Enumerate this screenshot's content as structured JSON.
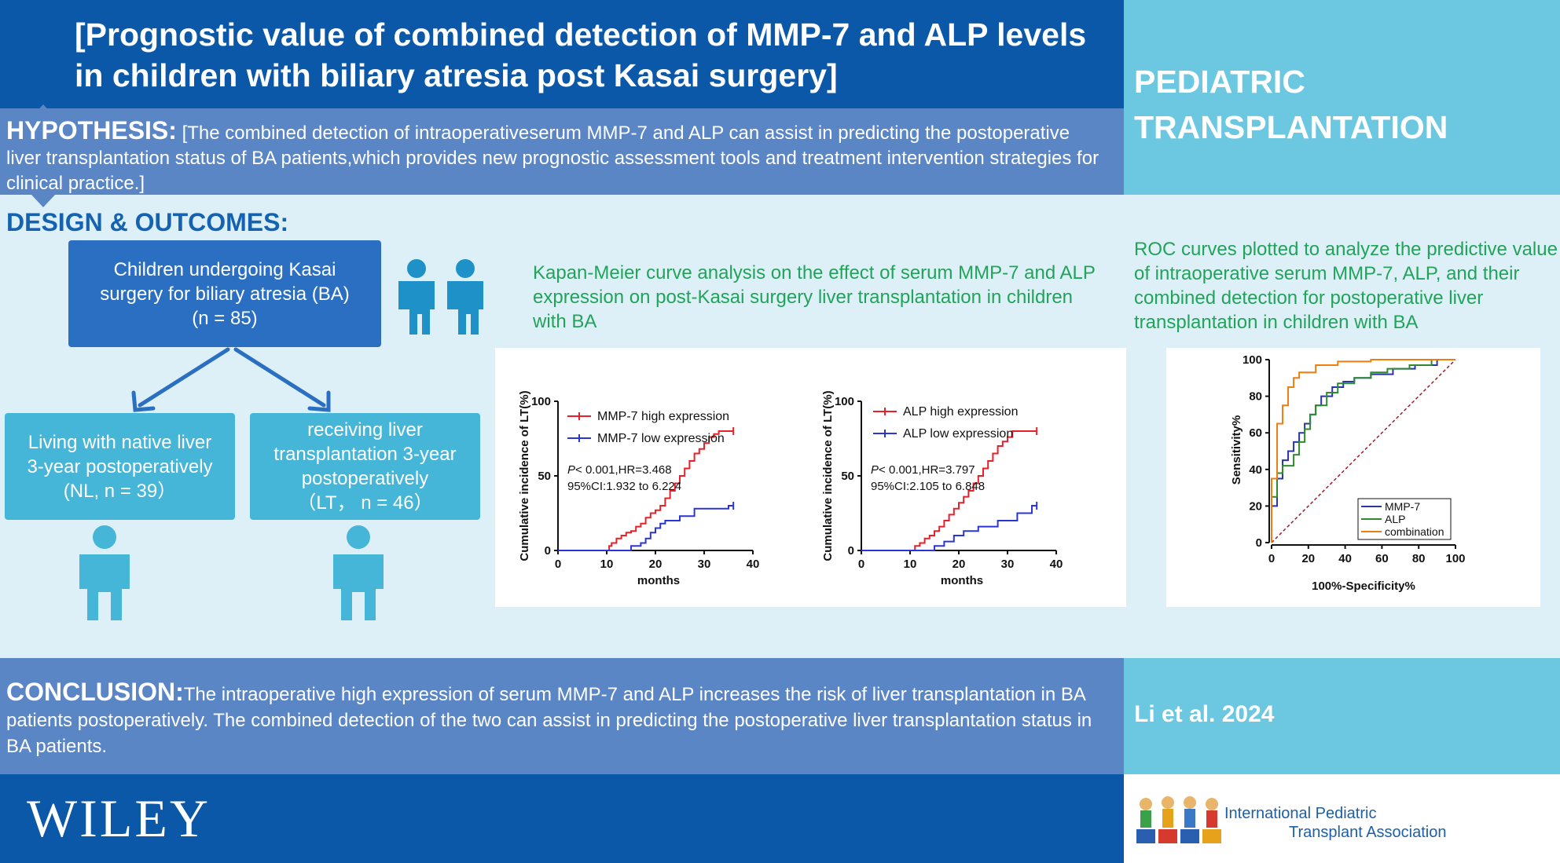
{
  "title": "[Prognostic value of combined detection of MMP-7 and ALP levels in children with biliary atresia post Kasai surgery]",
  "journal": "PEDIATRIC TRANSPLANTATION",
  "hypothesis": {
    "label": "HYPOTHESIS:",
    "text": " [The combined detection of intraoperativeserum MMP-7 and ALP can assist in predicting the postoperative liver transplantation status of BA patients,which provides new prognostic assessment tools and treatment intervention strategies for clinical practice.]"
  },
  "design": {
    "label": "DESIGN & OUTCOMES:",
    "main_box": [
      "Children undergoing Kasai",
      "surgery for biliary atresia (BA)",
      "(n = 85)"
    ],
    "nl_box": [
      "Living with native liver",
      "3-year postoperatively",
      "(NL, n = 39）"
    ],
    "lt_box": [
      "receiving liver",
      "transplantation 3-year",
      "postoperatively",
      "（LT， n = 46）"
    ]
  },
  "km_caption": "Kapan-Meier curve analysis on the effect of serum MMP-7 and ALP expression on post-Kasai surgery liver transplantation in children with BA",
  "roc_caption": "ROC curves plotted to analyze the predictive value of intraoperative serum MMP-7, ALP, and their combined detection for postoperative liver transplantation in children with BA",
  "colors": {
    "high": "#e8202a",
    "low": "#2a35d8",
    "mmp7": "#2a35a8",
    "alp": "#2e8b2e",
    "combination": "#f07d10",
    "reference": "#9b1c2e"
  },
  "chart_data": [
    {
      "type": "line",
      "ylabel": "Cumulative incidence of LT(%)",
      "xlabel": "months",
      "xlim": [
        0,
        40
      ],
      "ylim": [
        0,
        100
      ],
      "xticks": [
        "0",
        "10",
        "20",
        "30",
        "40"
      ],
      "yticks": [
        "0",
        "50",
        "100"
      ],
      "stat_line1": [
        "P",
        "< 0.001,HR=3.468"
      ],
      "stat_line2": "95%CI:1.932 to 6.224",
      "series": [
        {
          "name": "MMP-7 high expression",
          "color": "#e8202a",
          "x": [
            0,
            10,
            10.5,
            11,
            12,
            13,
            14,
            15,
            16,
            17,
            18,
            19,
            20,
            21,
            22,
            23,
            24,
            25,
            26,
            27,
            28,
            29,
            30,
            31,
            32,
            33,
            36
          ],
          "y": [
            0,
            0,
            3,
            5,
            8,
            10,
            12,
            13,
            16,
            18,
            22,
            25,
            27,
            30,
            35,
            40,
            45,
            50,
            55,
            60,
            65,
            68,
            72,
            76,
            78,
            80,
            80
          ]
        },
        {
          "name": "MMP-7 low expression",
          "color": "#2a35d8",
          "x": [
            0,
            14,
            15,
            17,
            18,
            19,
            20,
            21,
            22,
            25,
            28,
            35,
            36
          ],
          "y": [
            0,
            0,
            3,
            5,
            8,
            12,
            15,
            18,
            20,
            23,
            28,
            30,
            30
          ]
        }
      ]
    },
    {
      "type": "line",
      "ylabel": "Cumulative incidence of LT(%)",
      "xlabel": "months",
      "xlim": [
        0,
        40
      ],
      "ylim": [
        0,
        100
      ],
      "xticks": [
        "0",
        "10",
        "20",
        "30",
        "40"
      ],
      "yticks": [
        "0",
        "50",
        "100"
      ],
      "stat_line1": [
        "P",
        "< 0.001,HR=3.797"
      ],
      "stat_line2": "95%CI:2.105 to 6.848",
      "series": [
        {
          "name": "ALP high expression",
          "color": "#e8202a",
          "x": [
            0,
            10,
            11,
            12,
            13,
            14,
            15,
            16,
            17,
            18,
            19,
            20,
            21,
            22,
            23,
            24,
            25,
            26,
            27,
            28,
            29,
            30,
            31,
            36
          ],
          "y": [
            0,
            0,
            3,
            5,
            8,
            10,
            13,
            16,
            20,
            24,
            28,
            32,
            36,
            40,
            45,
            50,
            55,
            60,
            65,
            70,
            73,
            76,
            80,
            80
          ]
        },
        {
          "name": "ALP low expression",
          "color": "#2a35d8",
          "x": [
            0,
            14,
            15,
            17,
            19,
            21,
            24,
            28,
            32,
            35,
            36
          ],
          "y": [
            0,
            0,
            3,
            6,
            10,
            13,
            16,
            20,
            25,
            30,
            30
          ]
        }
      ]
    },
    {
      "type": "line",
      "ylabel": "Sensitivity%",
      "xlabel": "100%-Specificity%",
      "xlim": [
        0,
        100
      ],
      "ylim": [
        0,
        100
      ],
      "xticks": [
        "0",
        "20",
        "40",
        "60",
        "80",
        "100"
      ],
      "yticks": [
        "0",
        "20",
        "40",
        "60",
        "80",
        "100"
      ],
      "series": [
        {
          "name": "MMP-7",
          "color": "#2a35a8",
          "x": [
            0,
            0,
            3,
            3,
            6,
            6,
            9,
            9,
            12,
            12,
            15,
            15,
            18,
            18,
            21,
            21,
            24,
            24,
            27,
            27,
            33,
            33,
            39,
            39,
            45,
            45,
            54,
            54,
            66,
            66,
            78,
            78,
            90,
            90,
            100
          ],
          "y": [
            0,
            20,
            20,
            35,
            35,
            45,
            45,
            50,
            50,
            55,
            55,
            60,
            60,
            65,
            65,
            70,
            70,
            75,
            75,
            80,
            80,
            85,
            85,
            88,
            88,
            90,
            90,
            92,
            92,
            95,
            95,
            97,
            97,
            100,
            100
          ]
        },
        {
          "name": "ALP",
          "color": "#2e8b2e",
          "x": [
            0,
            0,
            3,
            3,
            6,
            6,
            12,
            12,
            15,
            15,
            18,
            18,
            21,
            21,
            24,
            24,
            30,
            30,
            36,
            36,
            45,
            45,
            54,
            54,
            63,
            63,
            75,
            75,
            87,
            87,
            100
          ],
          "y": [
            0,
            25,
            25,
            38,
            38,
            42,
            42,
            48,
            48,
            55,
            55,
            62,
            62,
            70,
            70,
            75,
            75,
            82,
            82,
            87,
            87,
            90,
            90,
            93,
            93,
            95,
            95,
            97,
            97,
            100,
            100
          ]
        },
        {
          "name": "combination",
          "color": "#f07d10",
          "x": [
            0,
            0,
            3,
            3,
            6,
            6,
            9,
            9,
            12,
            12,
            15,
            15,
            24,
            24,
            36,
            36,
            54,
            54,
            100
          ],
          "y": [
            0,
            35,
            35,
            65,
            65,
            75,
            75,
            85,
            85,
            90,
            90,
            93,
            93,
            97,
            97,
            99,
            99,
            100,
            100
          ]
        }
      ]
    }
  ],
  "conclusion": {
    "label": "CONCLUSION:",
    "text": "The intraoperative high expression of serum MMP-7 and ALP increases the risk of liver transplantation in BA patients postoperatively. The combined detection of the two can assist in predicting the postoperative liver transplantation status in BA patients."
  },
  "citation": "Li  et al. 2024",
  "publisher": "WILEY",
  "ipta": {
    "line1": "International Pediatric",
    "line2": "Transplant Association"
  }
}
